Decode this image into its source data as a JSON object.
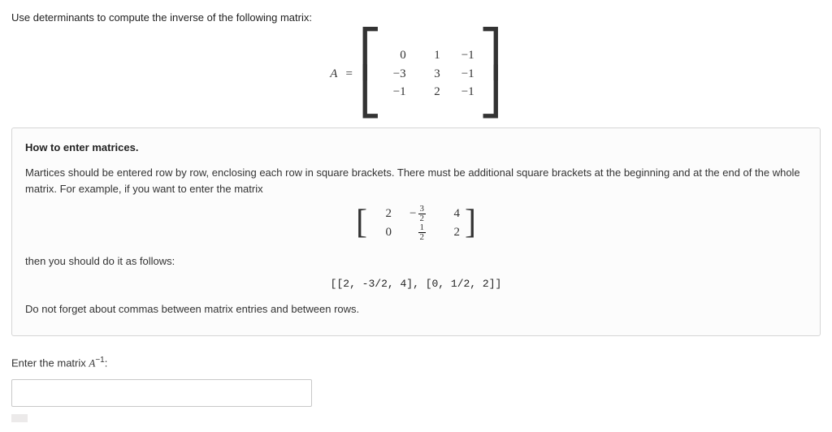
{
  "question": "Use determinants to compute the inverse of the following matrix:",
  "matrix_A": {
    "label": "A",
    "rows": [
      [
        "0",
        "1",
        "−1"
      ],
      [
        "−3",
        "3",
        "−1"
      ],
      [
        "−1",
        "2",
        "−1"
      ]
    ]
  },
  "help": {
    "title": "How to enter matrices.",
    "intro": "Martices should be entered row by row, enclosing each row in square brackets. There must be additional square brackets at the beginning and at the end of the whole matrix. For example, if you want to enter the matrix",
    "example_matrix": {
      "rows": [
        [
          {
            "type": "int",
            "v": "2"
          },
          {
            "type": "negfrac",
            "num": "3",
            "den": "2"
          },
          {
            "type": "int",
            "v": "4"
          }
        ],
        [
          {
            "type": "int",
            "v": "0"
          },
          {
            "type": "frac",
            "num": "1",
            "den": "2"
          },
          {
            "type": "int",
            "v": "2"
          }
        ]
      ]
    },
    "then_text": "then you should do it as follows:",
    "code_example": "[[2, -3/2, 4], [0, 1/2, 2]]",
    "footer": "Do not forget about commas between matrix entries and between rows."
  },
  "answer_prompt": {
    "prefix": "Enter the matrix ",
    "var": "A",
    "exp": "−1",
    "suffix": ":"
  },
  "answer_value": "",
  "colors": {
    "border": "#d5d5d5",
    "text": "#333333",
    "box_bg": "#fcfcfc"
  }
}
